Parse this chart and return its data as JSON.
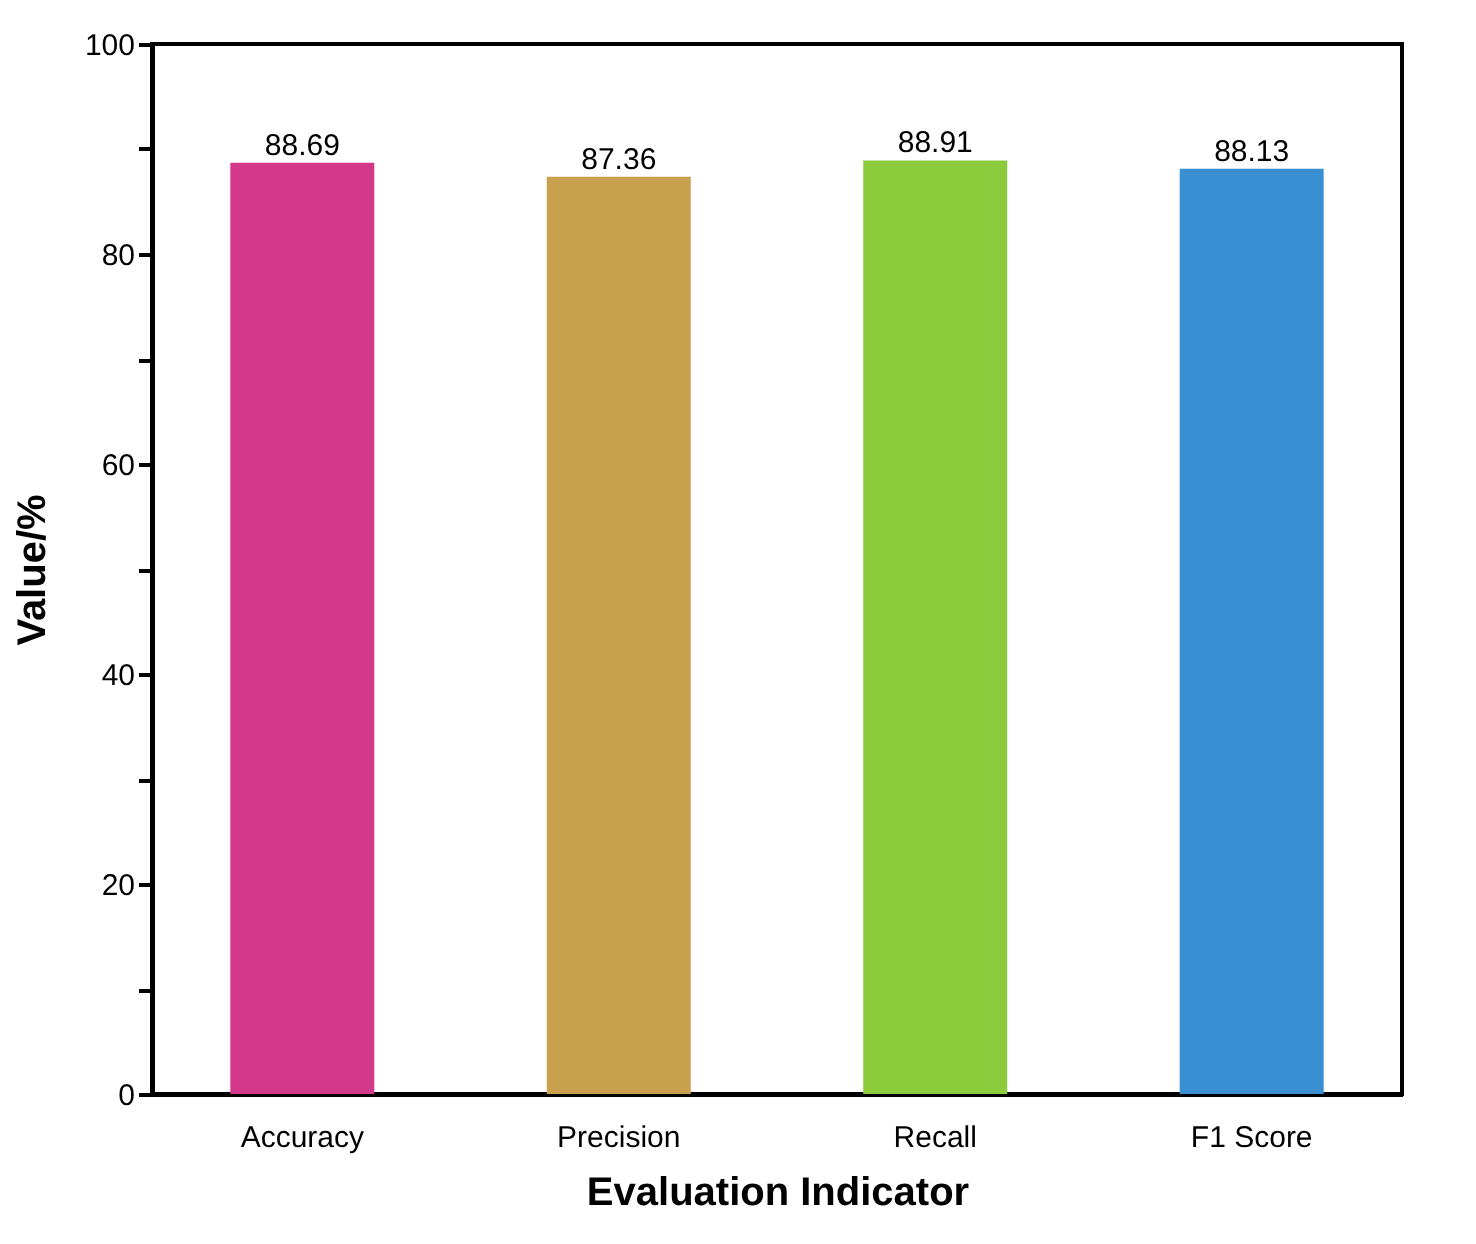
{
  "chart_data": {
    "type": "bar",
    "xlabel": "Evaluation Indicator",
    "ylabel": "Value/%",
    "categories": [
      "Accuracy",
      "Precision",
      "Recall",
      "F1 Score"
    ],
    "values": [
      88.69,
      87.36,
      88.91,
      88.13
    ],
    "colors": [
      "#d4388a",
      "#c9a04e",
      "#8ccb3c",
      "#3a8ed2"
    ],
    "ylim": [
      0,
      100
    ],
    "yticks": [
      0,
      {
        "value": 10,
        "label": null
      },
      20,
      {
        "value": 30,
        "label": null
      },
      40,
      {
        "value": 50,
        "label": null
      },
      60,
      {
        "value": 70,
        "label": null
      },
      80,
      {
        "value": 90,
        "label": null
      },
      100
    ],
    "data_labels": true
  }
}
